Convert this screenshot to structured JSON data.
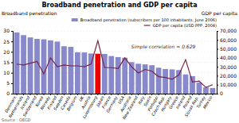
{
  "chart_data": {
    "type": "bar",
    "title": "Broadband penetration and GDP per capita",
    "ylabel": "Broadband penetration",
    "y2label": "GDP per capita",
    "categories": [
      "Denmark",
      "Netherlands",
      "Iceland",
      "Switzerland",
      "Korea",
      "Norway",
      "Finland",
      "Sweden",
      "Canada",
      "Belgium",
      "UK",
      "Austria",
      "Luxembourg",
      "Japan",
      "France",
      "Germany",
      "USA",
      "Australia",
      "New Zealand",
      "Italy",
      "Spain",
      "Portugal",
      "Czech Rep.",
      "Hungary",
      "Greece",
      "Ireland",
      "Poland",
      "Slovak Rep.",
      "Turkey",
      "Mexico"
    ],
    "series": [
      {
        "name": "Broadband penetration (subscribers per 100 inhabitants, June 2006)",
        "type": "bar",
        "color": "#8888cc",
        "colors": [
          "#8888cc",
          "#8888cc",
          "#8888cc",
          "#8888cc",
          "#8888cc",
          "#8888cc",
          "#8888cc",
          "#8888cc",
          "#8888cc",
          "#8888cc",
          "#8888cc",
          "#8888cc",
          "#ee0000",
          "#8888cc",
          "#8888cc",
          "#8888cc",
          "#8888cc",
          "#8888cc",
          "#8888cc",
          "#8888cc",
          "#8888cc",
          "#8888cc",
          "#8888cc",
          "#8888cc",
          "#8888cc",
          "#8888cc",
          "#8888cc",
          "#8888cc",
          "#8888cc",
          "#8888cc"
        ],
        "values": [
          29.3,
          28.0,
          26.9,
          26.2,
          26.0,
          25.5,
          24.9,
          22.7,
          22.4,
          19.8,
          19.7,
          19.2,
          19.1,
          19.0,
          18.0,
          17.5,
          17.2,
          15.1,
          14.3,
          14.0,
          13.6,
          12.4,
          11.8,
          11.6,
          11.3,
          9.2,
          8.4,
          5.3,
          3.0,
          2.7
        ]
      },
      {
        "name": "GDP per capita (USD PPP, 2004)",
        "type": "line",
        "axis": "y2",
        "color": "#7b2442",
        "values": [
          33000,
          32000,
          34000,
          36000,
          22000,
          40000,
          30000,
          32000,
          31000,
          31000,
          30000,
          33000,
          59000,
          29000,
          29000,
          28000,
          40000,
          30000,
          23000,
          27000,
          25000,
          19000,
          18000,
          16000,
          21000,
          38000,
          13000,
          14000,
          7000,
          10000
        ]
      }
    ],
    "ylim": [
      0,
      30
    ],
    "yticks": [
      0,
      5,
      10,
      15,
      20,
      25,
      30
    ],
    "y2lim": [
      0,
      70000
    ],
    "y2ticks": [
      0,
      {
        "value": 10000,
        "label": "10,000"
      },
      {
        "value": 20000,
        "label": "20,000"
      },
      {
        "value": 30000,
        "label": "30,000"
      },
      {
        "value": 40000,
        "label": "40,000"
      },
      {
        "value": 50000,
        "label": "50,000"
      },
      {
        "value": 60000,
        "label": "60,000"
      },
      {
        "value": 70000,
        "label": "70,000"
      }
    ],
    "grid": true,
    "legend": "upper right",
    "annotations": [
      "Simple correlation = 0.629",
      "Source : OECD"
    ]
  }
}
